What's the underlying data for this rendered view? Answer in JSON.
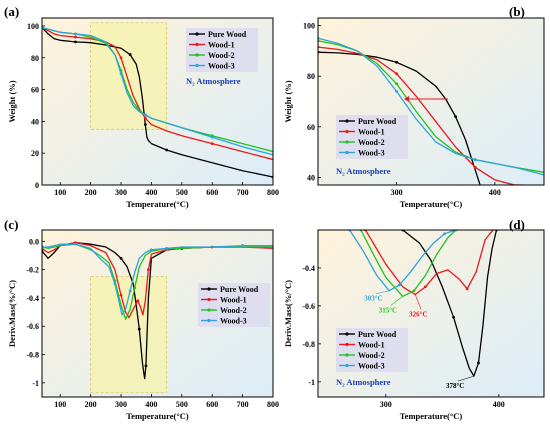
{
  "chart_data": [
    {
      "panel": "(a)",
      "type": "line",
      "xlabel": "Temperature(°C)",
      "ylabel": "Weight (%)",
      "xlim": [
        40,
        800
      ],
      "ylim": [
        0,
        105
      ],
      "xticks": [
        100,
        200,
        300,
        400,
        500,
        600,
        700,
        800
      ],
      "yticks": [
        0,
        20,
        40,
        60,
        80,
        100
      ],
      "legend_position": "top-right",
      "annotation": "N₂ Atmosphere",
      "highlight": {
        "x": [
          200,
          450
        ],
        "y": [
          35,
          102
        ]
      },
      "series": [
        {
          "name": "Pure Wood",
          "color": "#000000",
          "x": [
            40,
            60,
            80,
            100,
            150,
            200,
            250,
            300,
            330,
            350,
            360,
            370,
            380,
            385,
            390,
            400,
            450,
            500,
            600,
            700,
            800
          ],
          "y": [
            99,
            95,
            92,
            91,
            90,
            89.5,
            88,
            86,
            82,
            76,
            68,
            55,
            38,
            30,
            28,
            26,
            22,
            19,
            14,
            9,
            5
          ]
        },
        {
          "name": "Wood-1",
          "color": "#e8191b",
          "x": [
            40,
            60,
            80,
            100,
            150,
            200,
            250,
            280,
            300,
            320,
            340,
            360,
            380,
            400,
            450,
            500,
            600,
            700,
            800
          ],
          "y": [
            99,
            97,
            95,
            94,
            93,
            92,
            90,
            87,
            80,
            68,
            56,
            48,
            42,
            38,
            34,
            31,
            26,
            21,
            16
          ]
        },
        {
          "name": "Wood-2",
          "color": "#22c022",
          "x": [
            40,
            60,
            80,
            100,
            150,
            200,
            250,
            280,
            300,
            320,
            340,
            360,
            380,
            400,
            450,
            500,
            600,
            700,
            800
          ],
          "y": [
            99,
            98,
            97,
            96,
            95,
            93,
            89,
            82,
            72,
            60,
            52,
            47,
            44,
            42,
            39,
            36,
            31,
            26,
            21
          ]
        },
        {
          "name": "Wood-3",
          "color": "#2ea3dd",
          "x": [
            40,
            60,
            80,
            100,
            150,
            200,
            250,
            280,
            300,
            320,
            340,
            360,
            380,
            400,
            450,
            500,
            600,
            700,
            800
          ],
          "y": [
            99,
            98,
            97,
            96,
            95,
            94,
            90,
            82,
            70,
            58,
            50,
            46,
            44,
            42,
            39,
            36,
            30,
            24,
            19
          ]
        }
      ]
    },
    {
      "panel": "(b)",
      "type": "line",
      "xlabel": "Temperature(°C)",
      "ylabel": "Weight (%)",
      "xlim": [
        220,
        450
      ],
      "ylim": [
        37,
        103
      ],
      "xticks": [
        300,
        400
      ],
      "yticks": [
        40,
        60,
        80,
        100
      ],
      "legend_position": "bottom-left",
      "annotation": "N₂ Atmosphere",
      "series": [
        {
          "name": "Pure Wood",
          "color": "#000000",
          "x": [
            220,
            240,
            260,
            280,
            300,
            320,
            340,
            350,
            360,
            370,
            380,
            385
          ],
          "y": [
            89.5,
            89.2,
            88.6,
            87.5,
            85.5,
            82,
            76,
            71,
            64,
            55,
            43,
            37
          ]
        },
        {
          "name": "Wood-1",
          "color": "#e8191b",
          "x": [
            220,
            240,
            260,
            280,
            300,
            320,
            340,
            360,
            380,
            400,
            420,
            430
          ],
          "y": [
            91.5,
            90.6,
            89,
            86.5,
            81,
            72,
            62,
            52,
            44,
            39,
            37,
            37
          ]
        },
        {
          "name": "Wood-2",
          "color": "#22c022",
          "x": [
            220,
            240,
            260,
            280,
            300,
            320,
            340,
            360,
            380,
            400,
            420,
            450
          ],
          "y": [
            94,
            92.5,
            90,
            85,
            77,
            66,
            56,
            50,
            47,
            45.5,
            44,
            42
          ]
        },
        {
          "name": "Wood-3",
          "color": "#2ea3dd",
          "x": [
            220,
            240,
            260,
            280,
            300,
            320,
            340,
            360,
            380,
            400,
            420,
            450
          ],
          "y": [
            95,
            93,
            90,
            84,
            74,
            63,
            54,
            49.5,
            47,
            45.5,
            44,
            41
          ]
        }
      ]
    },
    {
      "panel": "(c)",
      "type": "line",
      "xlabel": "Temperature(°C)",
      "ylabel": "Deriv.Mass(%/°C)",
      "xlim": [
        40,
        800
      ],
      "ylim": [
        -1.1,
        0.08
      ],
      "xticks": [
        100,
        200,
        300,
        400,
        500,
        600,
        700,
        800
      ],
      "yticks": [
        0.0,
        -0.2,
        -0.4,
        -0.6,
        -0.8,
        -1.0
      ],
      "legend_position": "center-right",
      "highlight": {
        "x": [
          200,
          450
        ],
        "y": [
          -1.07,
          -0.25
        ]
      },
      "series": [
        {
          "name": "Pure Wood",
          "color": "#000000",
          "x": [
            40,
            60,
            80,
            100,
            150,
            200,
            250,
            280,
            300,
            320,
            340,
            350,
            360,
            370,
            375,
            378,
            382,
            390,
            400,
            450,
            500,
            600,
            700,
            800
          ],
          "y": [
            -0.07,
            -0.12,
            -0.08,
            -0.03,
            -0.01,
            -0.02,
            -0.04,
            -0.08,
            -0.12,
            -0.18,
            -0.3,
            -0.45,
            -0.62,
            -0.85,
            -0.93,
            -0.97,
            -0.88,
            -0.4,
            -0.12,
            -0.06,
            -0.05,
            -0.04,
            -0.04,
            -0.04
          ]
        },
        {
          "name": "Wood-1",
          "color": "#e8191b",
          "x": [
            40,
            60,
            80,
            100,
            150,
            200,
            250,
            280,
            300,
            315,
            326,
            340,
            355,
            365,
            372,
            380,
            390,
            400,
            450,
            500,
            600,
            700,
            800
          ],
          "y": [
            -0.05,
            -0.08,
            -0.06,
            -0.03,
            -0.01,
            -0.03,
            -0.08,
            -0.2,
            -0.38,
            -0.5,
            -0.54,
            -0.48,
            -0.42,
            -0.47,
            -0.52,
            -0.42,
            -0.2,
            -0.09,
            -0.06,
            -0.05,
            -0.04,
            -0.04,
            -0.05
          ]
        },
        {
          "name": "Wood-2",
          "color": "#22c022",
          "x": [
            40,
            60,
            80,
            100,
            150,
            200,
            230,
            260,
            280,
            300,
            315,
            330,
            345,
            360,
            380,
            400,
            450,
            500,
            600,
            700,
            800
          ],
          "y": [
            -0.04,
            -0.05,
            -0.04,
            -0.03,
            -0.02,
            -0.06,
            -0.1,
            -0.15,
            -0.28,
            -0.45,
            -0.55,
            -0.48,
            -0.33,
            -0.18,
            -0.1,
            -0.07,
            -0.05,
            -0.05,
            -0.04,
            -0.04,
            -0.04
          ]
        },
        {
          "name": "Wood-3",
          "color": "#2ea3dd",
          "x": [
            40,
            60,
            80,
            100,
            150,
            200,
            230,
            260,
            280,
            295,
            303,
            315,
            330,
            345,
            360,
            380,
            400,
            450,
            500,
            600,
            700,
            800
          ],
          "y": [
            -0.04,
            -0.04,
            -0.03,
            -0.02,
            -0.02,
            -0.05,
            -0.12,
            -0.18,
            -0.3,
            -0.44,
            -0.52,
            -0.48,
            -0.35,
            -0.22,
            -0.12,
            -0.08,
            -0.06,
            -0.05,
            -0.04,
            -0.04,
            -0.03,
            -0.03
          ]
        }
      ]
    },
    {
      "panel": "(d)",
      "type": "line",
      "xlabel": "Temperature(°C)",
      "ylabel": "Deriv.Mass(%/°C)",
      "xlim": [
        240,
        440
      ],
      "ylim": [
        -1.08,
        -0.2
      ],
      "xticks": [
        300,
        400
      ],
      "yticks": [
        -0.4,
        -0.6,
        -0.8,
        -1.0
      ],
      "legend_position": "bottom-left",
      "annotation": "N₂ Atmosphere",
      "peak_labels": [
        {
          "text": "303°C",
          "x": 303,
          "y": -0.52,
          "color": "#2ea3dd"
        },
        {
          "text": "315°C",
          "x": 315,
          "y": -0.55,
          "color": "#22c022"
        },
        {
          "text": "326°C",
          "x": 326,
          "y": -0.54,
          "color": "#e8191b"
        },
        {
          "text": "378°C",
          "x": 378,
          "y": -0.97,
          "color": "#000000"
        }
      ],
      "series": [
        {
          "name": "Pure Wood",
          "color": "#000000",
          "x": [
            315,
            330,
            340,
            350,
            360,
            368,
            374,
            378,
            382,
            386,
            390,
            394,
            398
          ],
          "y": [
            -0.2,
            -0.27,
            -0.36,
            -0.5,
            -0.66,
            -0.82,
            -0.93,
            -0.97,
            -0.9,
            -0.7,
            -0.45,
            -0.3,
            -0.2
          ]
        },
        {
          "name": "Wood-1",
          "color": "#e8191b",
          "x": [
            282,
            300,
            315,
            326,
            335,
            345,
            355,
            365,
            372,
            380,
            388,
            395
          ],
          "y": [
            -0.2,
            -0.38,
            -0.5,
            -0.54,
            -0.5,
            -0.43,
            -0.41,
            -0.46,
            -0.51,
            -0.42,
            -0.25,
            -0.2
          ]
        },
        {
          "name": "Wood-2",
          "color": "#22c022",
          "x": [
            278,
            290,
            300,
            315,
            325,
            335,
            345,
            355,
            362
          ],
          "y": [
            -0.2,
            -0.34,
            -0.45,
            -0.55,
            -0.52,
            -0.44,
            -0.33,
            -0.24,
            -0.2
          ]
        },
        {
          "name": "Wood-3",
          "color": "#2ea3dd",
          "x": [
            268,
            280,
            292,
            303,
            312,
            322,
            332,
            342,
            352,
            362
          ],
          "y": [
            -0.2,
            -0.31,
            -0.44,
            -0.52,
            -0.49,
            -0.42,
            -0.34,
            -0.27,
            -0.22,
            -0.2
          ]
        }
      ]
    }
  ]
}
